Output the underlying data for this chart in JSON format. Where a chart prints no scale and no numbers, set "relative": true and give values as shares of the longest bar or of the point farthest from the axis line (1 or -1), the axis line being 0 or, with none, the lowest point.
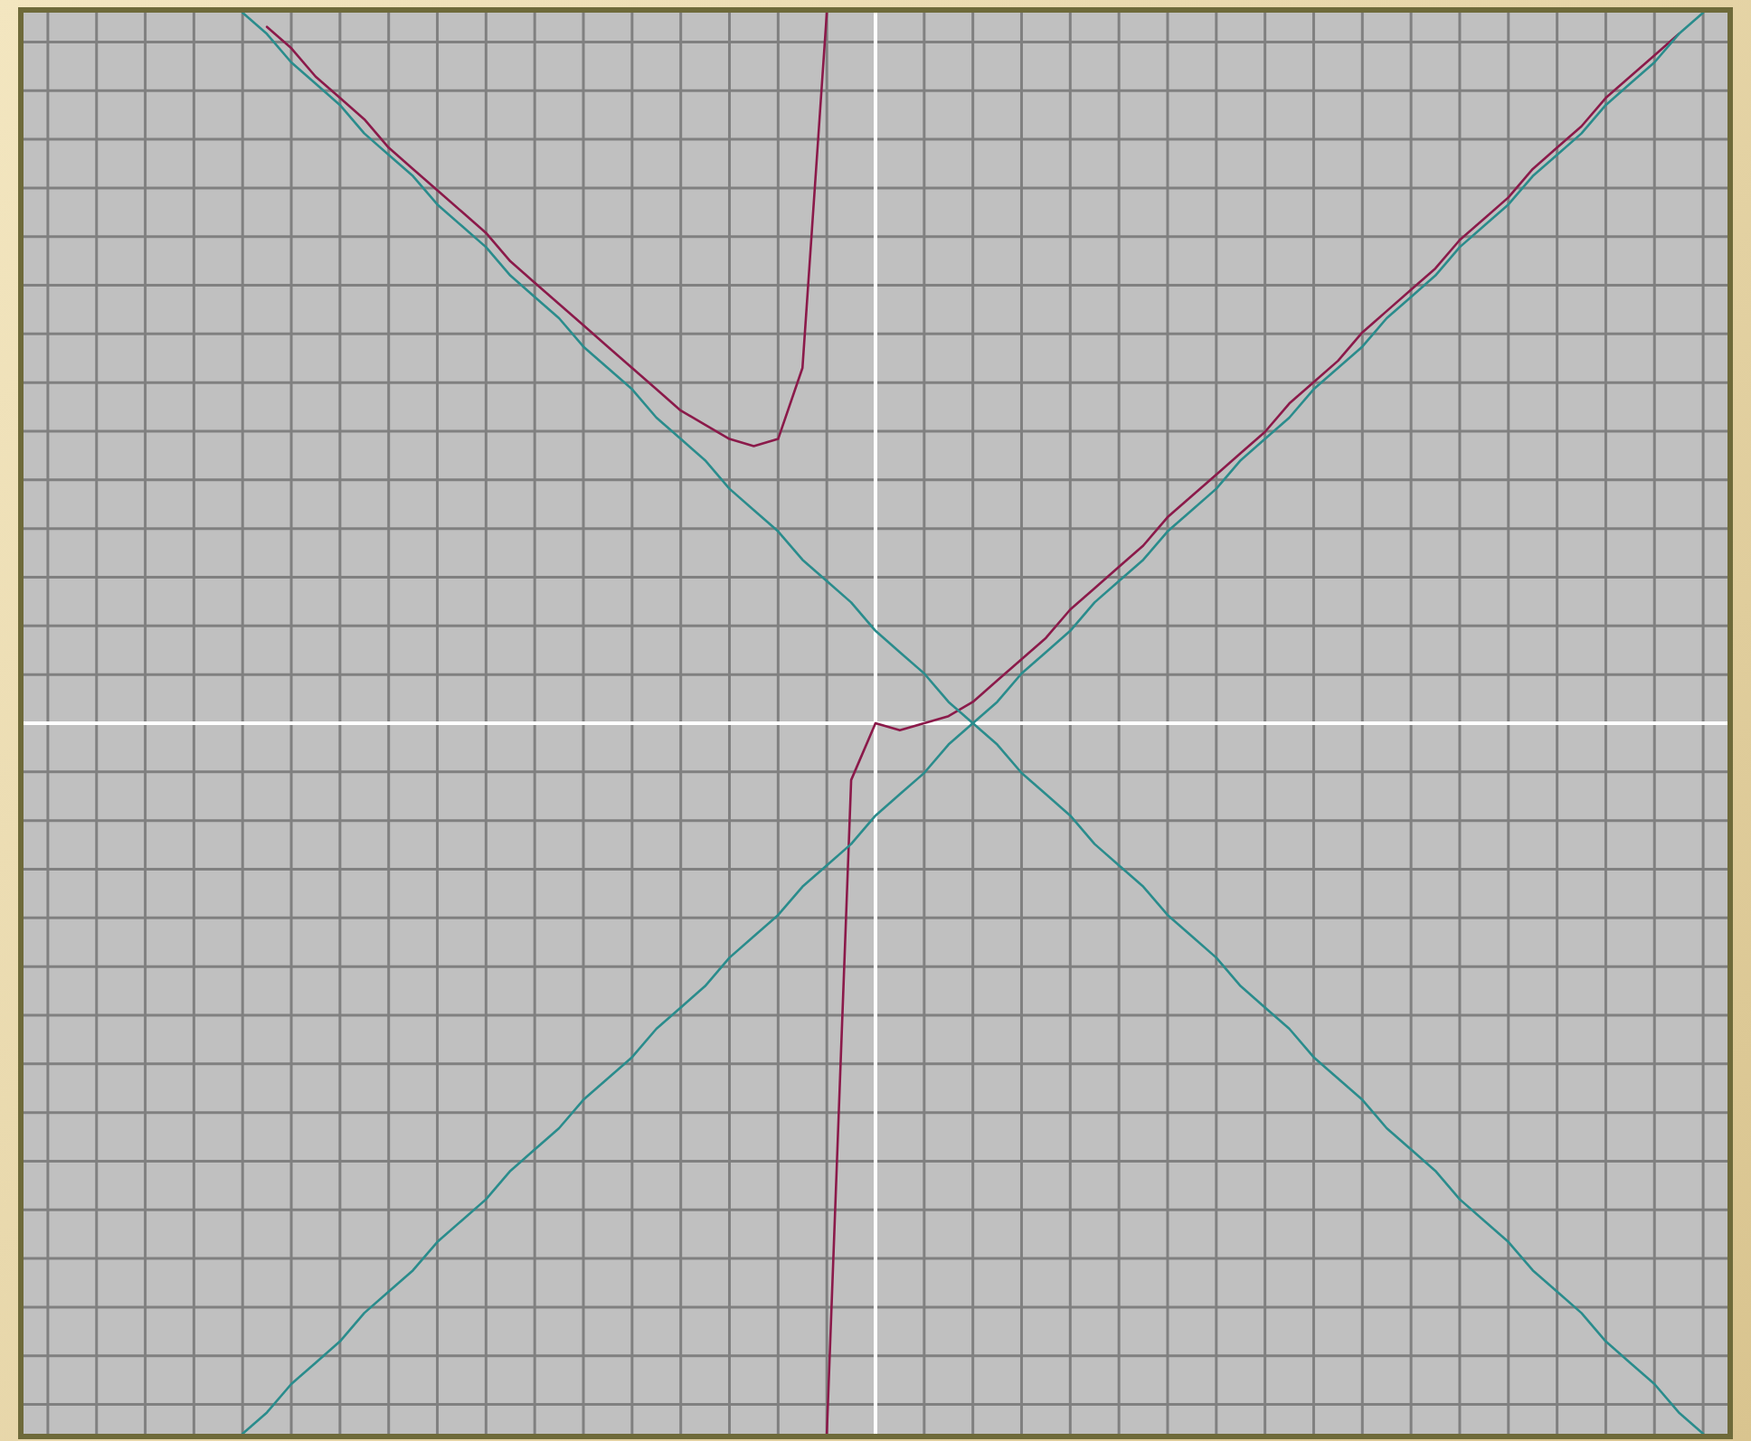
{
  "chart_data": {
    "type": "line",
    "relative": true,
    "grid": true,
    "legend": false,
    "marker": "none",
    "line_style": "solid",
    "categories": [
      null,
      null,
      null,
      null,
      null,
      null,
      null,
      null,
      null,
      null,
      null,
      null,
      null,
      null,
      null,
      null,
      null,
      null,
      null,
      null,
      null,
      null,
      null,
      null,
      null,
      null,
      null,
      null,
      null,
      null,
      null,
      null,
      null,
      null,
      null,
      null,
      null,
      null,
      null,
      null,
      null,
      null,
      null,
      null,
      null,
      null,
      null,
      null,
      null,
      null,
      null,
      null,
      null,
      null,
      null,
      null,
      null,
      null,
      null,
      null,
      null,
      null,
      null,
      null,
      null,
      null,
      null,
      null,
      null,
      null,
      null
    ],
    "series": [
      {
        "color": "#2a8c8c",
        "values": [
          null,
          null,
          null,
          null,
          null,
          null,
          null,
          null,
          null,
          1,
          0.97,
          0.93,
          0.9,
          0.87,
          0.83,
          0.8,
          0.77,
          0.73,
          0.7,
          0.67,
          0.63,
          0.6,
          0.57,
          0.53,
          0.5,
          0.47,
          0.43,
          0.4,
          0.37,
          0.33,
          0.3,
          0.27,
          0.23,
          0.2,
          0.17,
          0.13,
          0.1,
          0.07,
          0.03,
          0,
          -0.03,
          -0.07,
          -0.1,
          -0.13,
          -0.17,
          -0.2,
          -0.23,
          -0.27,
          -0.3,
          -0.33,
          -0.37,
          -0.4,
          -0.43,
          -0.47,
          -0.5,
          -0.53,
          -0.57,
          -0.6,
          -0.63,
          -0.67,
          -0.7,
          -0.73,
          -0.77,
          -0.8,
          -0.83,
          -0.87,
          -0.9,
          -0.93,
          -0.97,
          -1,
          null
        ]
      },
      {
        "color": "#2a8c8c",
        "values": [
          null,
          null,
          null,
          null,
          null,
          null,
          null,
          null,
          null,
          -1,
          -0.97,
          -0.93,
          -0.9,
          -0.87,
          -0.83,
          -0.8,
          -0.77,
          -0.73,
          -0.7,
          -0.67,
          -0.63,
          -0.6,
          -0.57,
          -0.53,
          -0.5,
          -0.47,
          -0.43,
          -0.4,
          -0.37,
          -0.33,
          -0.3,
          -0.27,
          -0.23,
          -0.2,
          -0.17,
          -0.13,
          -0.1,
          -0.07,
          -0.03,
          0,
          0.03,
          0.07,
          0.1,
          0.13,
          0.17,
          0.2,
          0.23,
          0.27,
          0.3,
          0.33,
          0.37,
          0.4,
          0.43,
          0.47,
          0.5,
          0.53,
          0.57,
          0.6,
          0.63,
          0.67,
          0.7,
          0.73,
          0.77,
          0.8,
          0.83,
          0.87,
          0.9,
          0.93,
          0.97,
          1,
          null
        ]
      },
      {
        "color": "#8b1a4a",
        "values": [
          null,
          null,
          null,
          null,
          null,
          null,
          null,
          null,
          null,
          null,
          0.98,
          0.95,
          0.91,
          0.88,
          0.85,
          0.81,
          0.78,
          0.75,
          0.72,
          0.69,
          0.65,
          0.62,
          0.59,
          0.56,
          0.53,
          0.5,
          0.47,
          0.44,
          0.42,
          0.4,
          0.39,
          0.4,
          0.5,
          1,
          null,
          null,
          null,
          null,
          null,
          null,
          null,
          null,
          null,
          null,
          null,
          null,
          null,
          null,
          null,
          null,
          null,
          null,
          null,
          null,
          null,
          null,
          null,
          null,
          null,
          null,
          null,
          null,
          null,
          null,
          null,
          null,
          null,
          null,
          null,
          null,
          null
        ]
      },
      {
        "color": "#8b1a4a",
        "values": [
          null,
          null,
          null,
          null,
          null,
          null,
          null,
          null,
          null,
          null,
          null,
          null,
          null,
          null,
          null,
          null,
          null,
          null,
          null,
          null,
          null,
          null,
          null,
          null,
          null,
          null,
          null,
          null,
          null,
          null,
          null,
          null,
          null,
          -1,
          -0.08,
          0,
          -0.01,
          0,
          0.01,
          0.03,
          0.06,
          0.09,
          0.12,
          0.16,
          0.19,
          0.22,
          0.25,
          0.29,
          0.32,
          0.35,
          0.38,
          0.41,
          0.45,
          0.48,
          0.51,
          0.55,
          0.58,
          0.61,
          0.64,
          0.68,
          0.71,
          0.74,
          0.78,
          0.81,
          0.84,
          0.88,
          0.91,
          0.94,
          0.97,
          null,
          null
        ]
      }
    ]
  }
}
